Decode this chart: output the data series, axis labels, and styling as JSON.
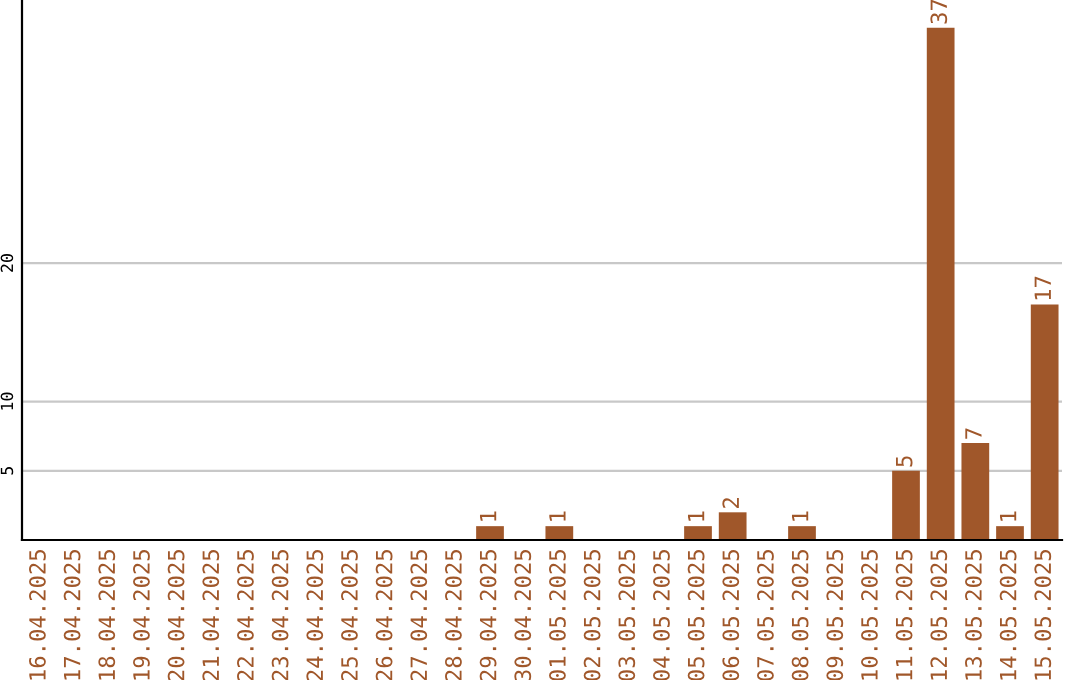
{
  "chart_data": {
    "type": "bar",
    "categories": [
      "16.04.2025",
      "17.04.2025",
      "18.04.2025",
      "19.04.2025",
      "20.04.2025",
      "21.04.2025",
      "22.04.2025",
      "23.04.2025",
      "24.04.2025",
      "25.04.2025",
      "26.04.2025",
      "27.04.2025",
      "28.04.2025",
      "29.04.2025",
      "30.04.2025",
      "01.05.2025",
      "02.05.2025",
      "03.05.2025",
      "04.05.2025",
      "05.05.2025",
      "06.05.2025",
      "07.05.2025",
      "08.05.2025",
      "09.05.2025",
      "10.05.2025",
      "11.05.2025",
      "12.05.2025",
      "13.05.2025",
      "14.05.2025",
      "15.05.2025"
    ],
    "values": [
      0,
      0,
      0,
      0,
      0,
      0,
      0,
      0,
      0,
      0,
      0,
      0,
      0,
      1,
      0,
      1,
      0,
      0,
      0,
      1,
      2,
      0,
      1,
      0,
      0,
      5,
      37,
      7,
      1,
      17
    ],
    "value_labels": [
      null,
      null,
      null,
      null,
      null,
      null,
      null,
      null,
      null,
      null,
      null,
      null,
      null,
      "1",
      null,
      "1",
      null,
      null,
      null,
      "1",
      "2",
      null,
      "1",
      null,
      null,
      "5",
      "37",
      "7",
      "1",
      "17"
    ],
    "color": "#a0572a",
    "ylim": [
      0,
      39
    ],
    "yticks": [
      5,
      10,
      20
    ],
    "grid": "y"
  }
}
